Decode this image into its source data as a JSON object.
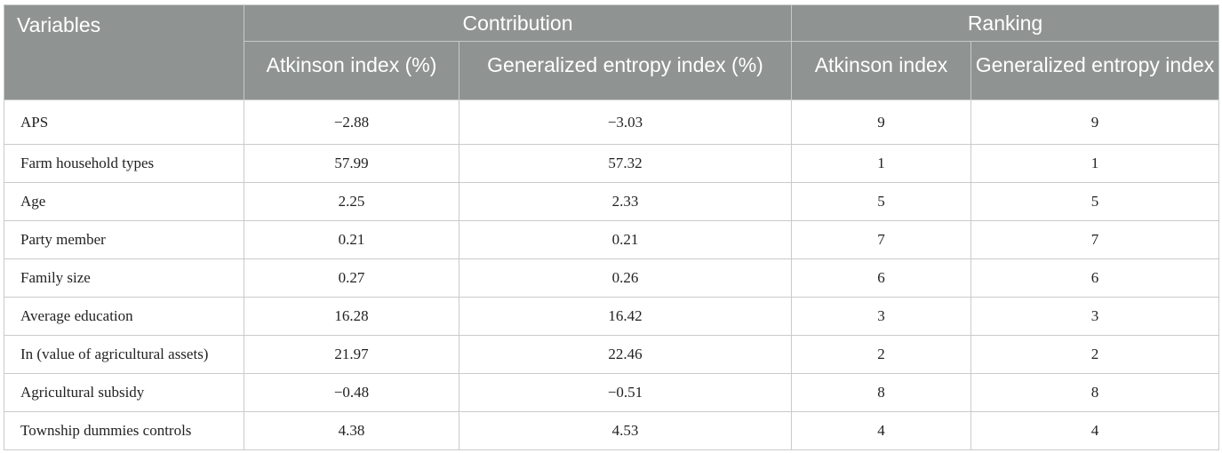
{
  "header": {
    "variables": "Variables",
    "contribution": "Contribution",
    "ranking": "Ranking",
    "contribution_sub": [
      "Atkinson index (%)",
      "Generalized entropy index (%)"
    ],
    "ranking_sub": [
      "Atkinson index",
      "Generalized entropy index"
    ]
  },
  "rows": [
    {
      "name": "APS",
      "atk_contrib": "−2.88",
      "ge_contrib": "−3.03",
      "atk_rank": "9",
      "ge_rank": "9"
    },
    {
      "name": "Farm household types",
      "atk_contrib": "57.99",
      "ge_contrib": "57.32",
      "atk_rank": "1",
      "ge_rank": "1"
    },
    {
      "name": "Age",
      "atk_contrib": "2.25",
      "ge_contrib": "2.33",
      "atk_rank": "5",
      "ge_rank": "5"
    },
    {
      "name": "Party member",
      "atk_contrib": "0.21",
      "ge_contrib": "0.21",
      "atk_rank": "7",
      "ge_rank": "7"
    },
    {
      "name": "Family size",
      "atk_contrib": "0.27",
      "ge_contrib": "0.26",
      "atk_rank": "6",
      "ge_rank": "6"
    },
    {
      "name": "Average education",
      "atk_contrib": "16.28",
      "ge_contrib": "16.42",
      "atk_rank": "3",
      "ge_rank": "3"
    },
    {
      "name": "In (value of agricultural assets)",
      "atk_contrib": "21.97",
      "ge_contrib": "22.46",
      "atk_rank": "2",
      "ge_rank": "2"
    },
    {
      "name": "Agricultural subsidy",
      "atk_contrib": "−0.48",
      "ge_contrib": "−0.51",
      "atk_rank": "8",
      "ge_rank": "8"
    },
    {
      "name": "Township dummies controls",
      "atk_contrib": "4.38",
      "ge_contrib": "4.53",
      "atk_rank": "4",
      "ge_rank": "4"
    }
  ],
  "colors": {
    "header_bg": "#8f9493",
    "header_text": "#ffffff",
    "grid": "#c9cbcb"
  }
}
